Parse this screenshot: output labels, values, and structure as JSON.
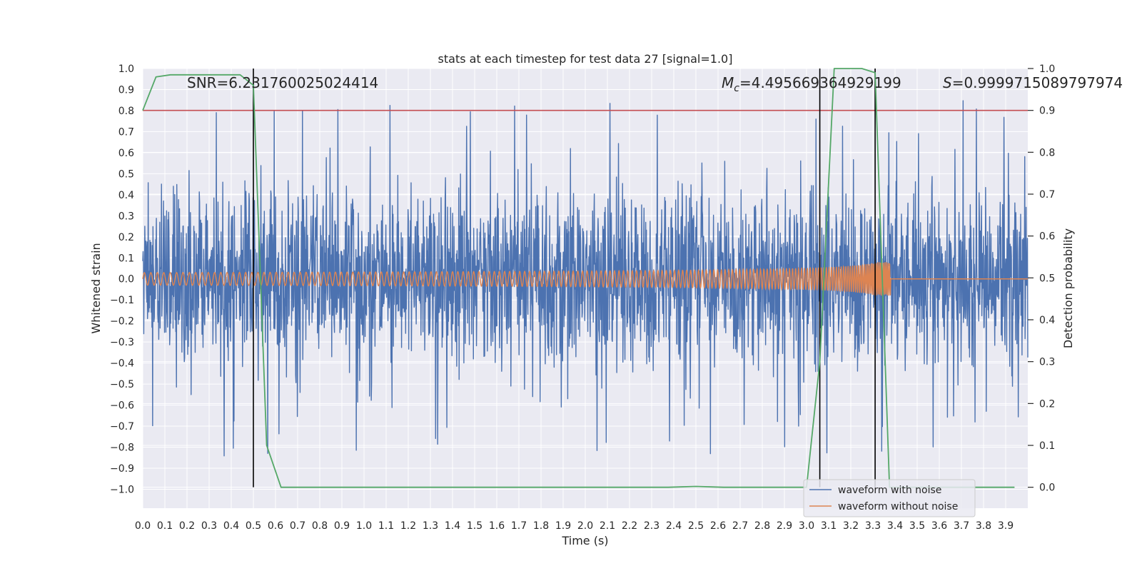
{
  "chart_data": {
    "type": "line",
    "title": "stats at each timestep for test data 27 [signal=1.0]",
    "xlabel": "Time (s)",
    "ylabel_left": "Whitened strain",
    "ylabel_right": "Detection probability",
    "xlim": [
      0.0,
      4.0
    ],
    "ylim_left": [
      -1.09,
      1.0
    ],
    "ylim_right": [
      -0.05,
      1.0
    ],
    "x_ticks": [
      "0.0",
      "0.1",
      "0.2",
      "0.3",
      "0.4",
      "0.5",
      "0.6",
      "0.7",
      "0.8",
      "0.9",
      "1.0",
      "1.1",
      "1.2",
      "1.3",
      "1.4",
      "1.5",
      "1.6",
      "1.7",
      "1.8",
      "1.9",
      "2.0",
      "2.1",
      "2.2",
      "2.3",
      "2.4",
      "2.5",
      "2.6",
      "2.7",
      "2.8",
      "2.9",
      "3.0",
      "3.1",
      "3.2",
      "3.3",
      "3.4",
      "3.5",
      "3.6",
      "3.7",
      "3.8",
      "3.9"
    ],
    "y_ticks_left": [
      "1.0",
      "0.9",
      "0.8",
      "0.7",
      "0.6",
      "0.5",
      "0.4",
      "0.3",
      "0.2",
      "0.1",
      "0.0",
      "−0.1",
      "−0.2",
      "−0.3",
      "−0.4",
      "−0.5",
      "−0.6",
      "−0.7",
      "−0.8",
      "−0.9",
      "−1.0"
    ],
    "y_ticks_right": [
      "1.0",
      "0.9",
      "0.8",
      "0.7",
      "0.6",
      "0.5",
      "0.4",
      "0.3",
      "0.2",
      "0.1",
      "0.0"
    ],
    "annotations": {
      "snr": "SNR=6.231760025024414",
      "mc_symbol": "M",
      "mc_sub": "c",
      "mc_value": "=4.495669364929199",
      "s_symbol": "S",
      "s_value": "=0.9999715089797974"
    },
    "threshold_right": 0.9,
    "vlines_x": [
      0.5,
      3.06,
      3.31
    ],
    "noisy_series": {
      "name": "waveform with noise",
      "color": "#4c72b0",
      "x_range": [
        0.0,
        4.0
      ],
      "envelope_abs_max": 0.85,
      "min_value": -0.97
    },
    "clean_series": {
      "name": "waveform without noise",
      "color": "#dd8452",
      "x_range": [
        0.0,
        4.0
      ],
      "start_amplitude": 0.03,
      "peak_amplitude": 0.15,
      "merger_time": 3.38,
      "start_frequency_hz": 34,
      "peak_frequency_hz": 180
    },
    "detection_probability": {
      "name": "detection probability",
      "color": "#55a868",
      "x": [
        0.0,
        0.06,
        0.125,
        0.19,
        0.25,
        0.31,
        0.375,
        0.44,
        0.5,
        0.56,
        0.625,
        0.69,
        0.75,
        0.81,
        0.875,
        0.94,
        1.0,
        1.5,
        2.0,
        2.375,
        2.5,
        2.625,
        3.0,
        3.06,
        3.125,
        3.19,
        3.25,
        3.31,
        3.375,
        3.44,
        3.5,
        3.625,
        3.75,
        3.875,
        3.94
      ],
      "y": [
        0.9,
        0.98,
        0.985,
        0.985,
        0.985,
        0.985,
        0.985,
        0.985,
        0.96,
        0.1,
        0.0,
        0.0,
        0.0,
        0.0,
        0.0,
        0.0,
        0.0,
        0.0,
        0.0,
        0.0,
        0.002,
        0.0,
        0.0,
        0.3,
        1.0,
        1.0,
        1.0,
        0.99,
        0.0,
        0.0,
        0.0,
        0.0,
        0.0,
        0.0,
        0.0
      ]
    },
    "threshold_color": "#c44e52",
    "vline_color": "#000000",
    "legend": {
      "position": "lower-right",
      "entries": [
        "waveform with noise",
        "waveform without noise"
      ]
    },
    "grid": true
  }
}
